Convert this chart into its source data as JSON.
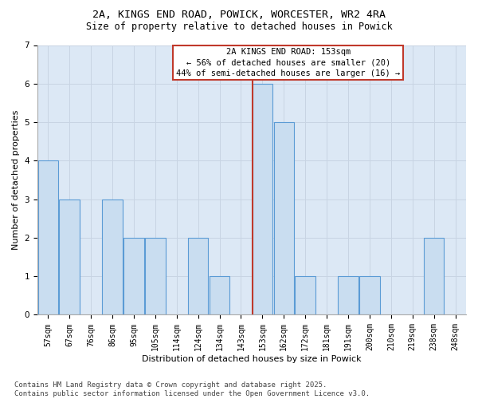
{
  "title_line1": "2A, KINGS END ROAD, POWICK, WORCESTER, WR2 4RA",
  "title_line2": "Size of property relative to detached houses in Powick",
  "xlabel": "Distribution of detached houses by size in Powick",
  "ylabel": "Number of detached properties",
  "categories": [
    "57sqm",
    "67sqm",
    "76sqm",
    "86sqm",
    "95sqm",
    "105sqm",
    "114sqm",
    "124sqm",
    "134sqm",
    "143sqm",
    "153sqm",
    "162sqm",
    "172sqm",
    "181sqm",
    "191sqm",
    "200sqm",
    "210sqm",
    "219sqm",
    "238sqm",
    "248sqm"
  ],
  "values": [
    4,
    3,
    0,
    3,
    2,
    2,
    0,
    2,
    1,
    0,
    6,
    5,
    1,
    0,
    1,
    1,
    0,
    0,
    2,
    0
  ],
  "bar_color": "#c9ddf0",
  "bar_edge_color": "#5b9bd5",
  "highlight_index": 10,
  "red_line_color": "#c0392b",
  "annotation_box_text": "2A KINGS END ROAD: 153sqm\n← 56% of detached houses are smaller (20)\n44% of semi-detached houses are larger (16) →",
  "annotation_box_edge_color": "#c0392b",
  "annotation_box_bg": "#ffffff",
  "ylim": [
    0,
    7
  ],
  "yticks": [
    0,
    1,
    2,
    3,
    4,
    5,
    6,
    7
  ],
  "grid_color": "#c8d4e3",
  "bg_color": "#dce8f5",
  "footer_line1": "Contains HM Land Registry data © Crown copyright and database right 2025.",
  "footer_line2": "Contains public sector information licensed under the Open Government Licence v3.0.",
  "title_fontsize": 9.5,
  "subtitle_fontsize": 8.5,
  "axis_label_fontsize": 8,
  "tick_fontsize": 7,
  "annotation_fontsize": 7.5,
  "footer_fontsize": 6.5
}
